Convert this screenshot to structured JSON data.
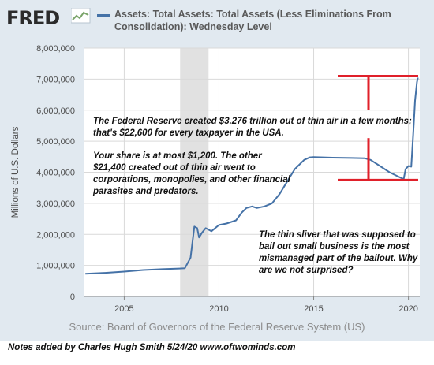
{
  "header": {
    "logo_text": "FRED",
    "title": "Assets: Total Assets: Total Assets (Less Eliminations From Consolidation): Wednesday Level"
  },
  "colors": {
    "frame": "#e1e9f0",
    "series": "#4572a7",
    "recession": "#e1e1e1",
    "annotation": "#e0202a"
  },
  "source_text": "Source: Board of Governors of the Federal Reserve System (US)",
  "credit_text": "Notes added by Charles Hugh Smith  5/24/20  www.oftwominds.com",
  "notes": [
    "The Federal Reserve created $3.276 trillion out of thin air in a few months; that's $22,600 for every taxpayer in the USA.",
    "Your share is at most $1,200. The other $21,400 created out of thin air went to corporations, monopolies, and other financial parasites and predators.",
    "The thin sliver that was supposed to bail out small business is the most mismanaged part of the bailout. Why are we not surprised?"
  ],
  "chart_data": {
    "type": "line",
    "title": "Assets: Total Assets: Total Assets (Less Eliminations From Consolidation): Wednesday Level",
    "xlabel": "",
    "ylabel": "Millions of U.S. Dollars",
    "xlim": [
      2002.9,
      2020.6
    ],
    "ylim": [
      0,
      8000000
    ],
    "x_ticks": [
      2005,
      2010,
      2015,
      2020
    ],
    "x_tick_labels": [
      "2005",
      "2010",
      "2015",
      "2020"
    ],
    "y_ticks": [
      0,
      1000000,
      2000000,
      3000000,
      4000000,
      5000000,
      6000000,
      7000000,
      8000000
    ],
    "y_tick_labels": [
      "0",
      "1,000,000",
      "2,000,000",
      "3,000,000",
      "4,000,000",
      "5,000,000",
      "6,000,000",
      "7,000,000",
      "8,000,000"
    ],
    "grid": true,
    "recession_shading": [
      [
        2007.95,
        2009.45
      ]
    ],
    "series": [
      {
        "x": [
          2002.95,
          2004.0,
          2005.0,
          2006.0,
          2007.0,
          2007.9,
          2008.2,
          2008.5,
          2008.7,
          2008.85,
          2008.95,
          2009.1,
          2009.3,
          2009.6,
          2010.0,
          2010.4,
          2010.9,
          2011.2,
          2011.45,
          2011.75,
          2012.0,
          2012.4,
          2012.8,
          2013.2,
          2013.6,
          2014.0,
          2014.5,
          2014.8,
          2015.0,
          2016.0,
          2017.0,
          2017.7,
          2018.0,
          2018.5,
          2019.0,
          2019.5,
          2019.75,
          2019.85,
          2020.0,
          2020.15,
          2020.25,
          2020.35,
          2020.45,
          2020.5
        ],
        "y": [
          730000,
          760000,
          800000,
          850000,
          880000,
          900000,
          910000,
          1250000,
          2250000,
          2200000,
          1900000,
          2050000,
          2200000,
          2100000,
          2300000,
          2350000,
          2450000,
          2700000,
          2850000,
          2900000,
          2850000,
          2900000,
          3000000,
          3300000,
          3700000,
          4100000,
          4400000,
          4480000,
          4490000,
          4470000,
          4460000,
          4450000,
          4400000,
          4200000,
          4000000,
          3850000,
          3780000,
          4100000,
          4200000,
          4180000,
          5200000,
          6300000,
          6900000,
          7050000
        ]
      }
    ]
  }
}
